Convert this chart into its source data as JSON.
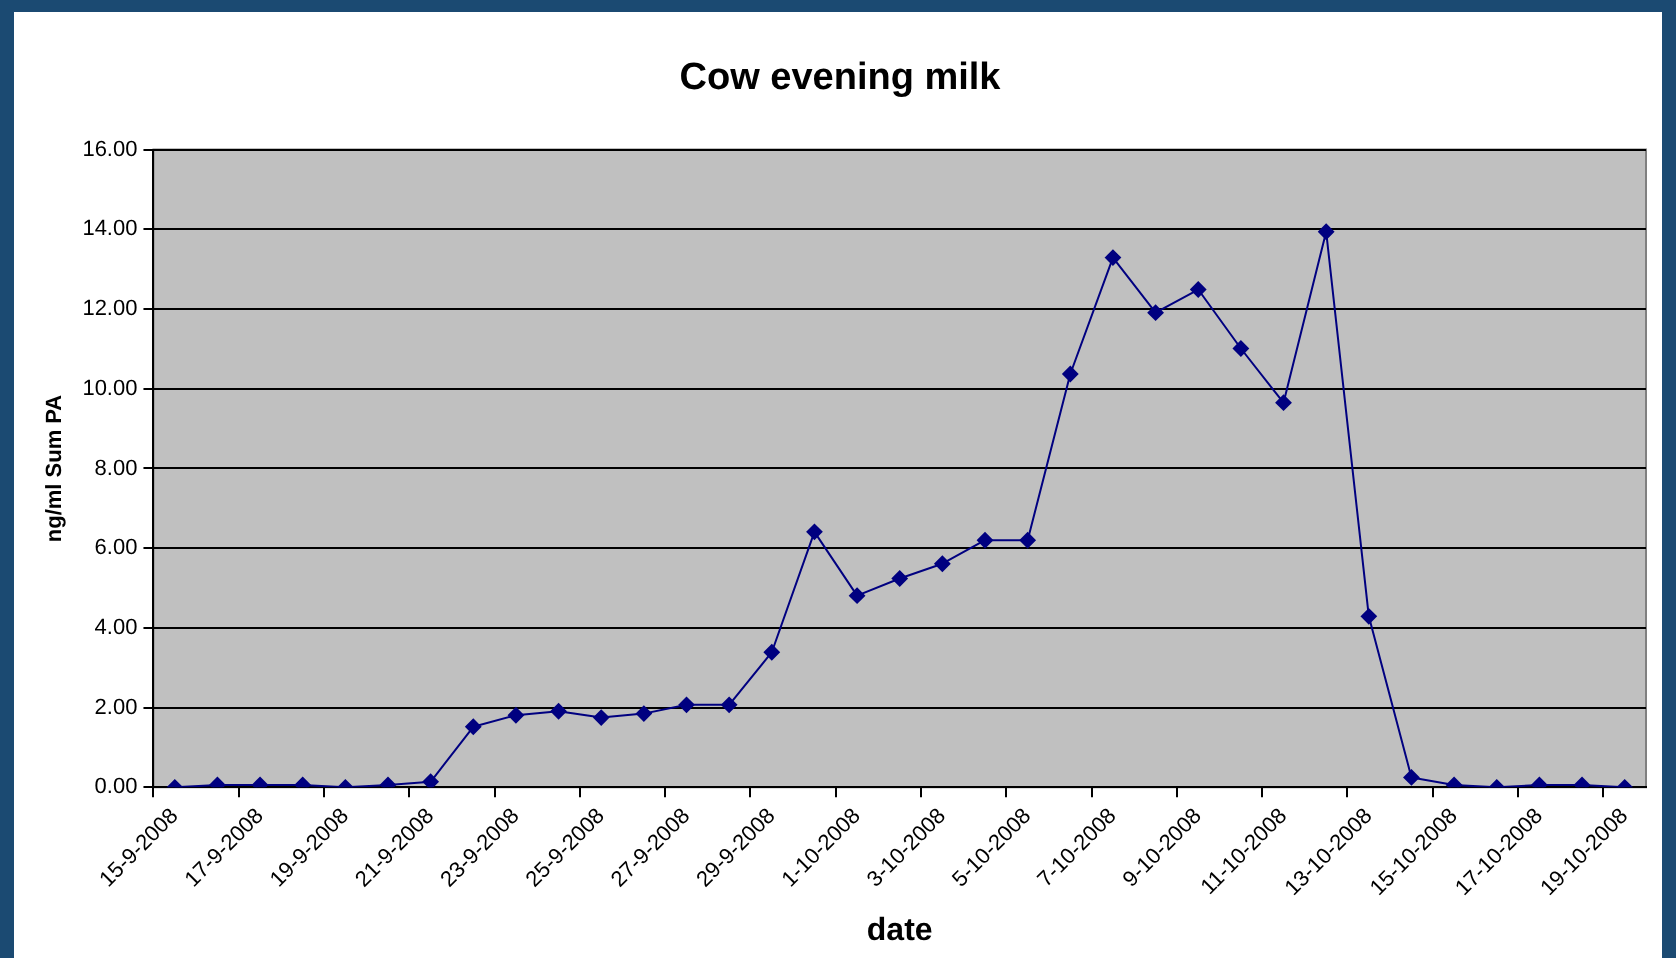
{
  "chart_data": {
    "type": "line",
    "title": "Cow evening milk",
    "xlabel": "date",
    "ylabel": "ng/ml Sum PA",
    "categories": [
      "15-9-2008",
      null,
      "17-9-2008",
      null,
      "19-9-2008",
      null,
      "21-9-2008",
      null,
      "23-9-2008",
      null,
      "25-9-2008",
      null,
      "27-9-2008",
      null,
      "29-9-2008",
      null,
      "1-10-2008",
      null,
      "3-10-2008",
      null,
      "5-10-2008",
      null,
      "7-10-2008",
      null,
      "9-10-2008",
      null,
      "11-10-2008",
      null,
      "13-10-2008",
      null,
      "15-10-2008",
      null,
      "17-10-2008",
      null,
      "19-10-2008"
    ],
    "series": [
      {
        "color": "#000080",
        "values": [
          0,
          0.06,
          0.06,
          0.06,
          0,
          0.06,
          0.14,
          1.52,
          1.81,
          1.91,
          1.75,
          1.85,
          2.07,
          2.07,
          3.39,
          6.41,
          4.81,
          5.24,
          5.61,
          6.2,
          6.2,
          10.37,
          13.29,
          11.91,
          12.49,
          11.01,
          9.65,
          13.94,
          4.29,
          0.25,
          0.06,
          0,
          0.06,
          0.06,
          0
        ]
      }
    ],
    "ylim": [
      0,
      16
    ],
    "yticks": [
      {
        "value": 0,
        "label": "0.00"
      },
      {
        "value": 2,
        "label": "2.00"
      },
      {
        "value": 4,
        "label": "4.00"
      },
      {
        "value": 6,
        "label": "6.00"
      },
      {
        "value": 8,
        "label": "8.00"
      },
      {
        "value": 10,
        "label": "10.00"
      },
      {
        "value": 12,
        "label": "12.00"
      },
      {
        "value": 14,
        "label": "14.00"
      },
      {
        "value": 16,
        "label": "16.00"
      }
    ],
    "grid": "y",
    "legend": false,
    "marker": "diamond",
    "line_style": "solid"
  }
}
